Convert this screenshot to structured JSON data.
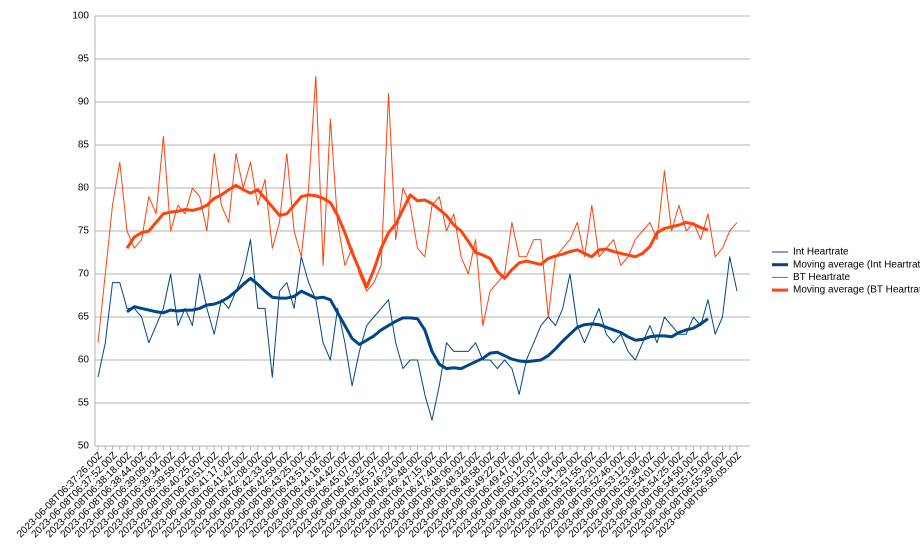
{
  "chart_data": {
    "type": "line",
    "categories": [
      "2023-06-08T06:37:26.00Z",
      null,
      "2023-06-08T06:37:52.00Z",
      null,
      "2023-06-08T06:38:18.00Z",
      null,
      "2023-06-08T06:38:44.00Z",
      null,
      "2023-06-08T06:39:09.00Z",
      null,
      "2023-06-08T06:39:34.00Z",
      null,
      "2023-06-08T06:39:59.00Z",
      null,
      "2023-06-08T06:40:25.00Z",
      null,
      "2023-06-08T06:40:51.00Z",
      null,
      "2023-06-08T06:41:17.00Z",
      null,
      "2023-06-08T06:41:42.00Z",
      null,
      "2023-06-08T06:42:08.00Z",
      null,
      "2023-06-08T06:42:33.00Z",
      null,
      "2023-06-08T06:42:59.00Z",
      null,
      "2023-06-08T06:43:25.00Z",
      null,
      "2023-06-08T06:43:51.00Z",
      null,
      "2023-06-08T06:44:16.00Z",
      null,
      "2023-06-08T06:44:42.00Z",
      null,
      "2023-06-08T06:45:07.00Z",
      null,
      "2023-06-08T06:45:32.00Z",
      null,
      "2023-06-08T06:45:57.00Z",
      null,
      "2023-06-08T06:46:23.00Z",
      null,
      "2023-06-08T06:46:48.00Z",
      null,
      "2023-06-08T06:47:15.00Z",
      null,
      "2023-06-08T06:47:40.00Z",
      null,
      "2023-06-08T06:48:06.00Z",
      null,
      "2023-06-08T06:48:32.00Z",
      null,
      "2023-06-08T06:48:58.00Z",
      null,
      "2023-06-08T06:49:22.00Z",
      null,
      "2023-06-08T06:49:47.00Z",
      null,
      "2023-06-08T06:50:12.00Z",
      null,
      "2023-06-08T06:50:37.00Z",
      null,
      "2023-06-08T06:51:04.00Z",
      null,
      "2023-06-08T06:51:29.00Z",
      null,
      "2023-06-08T06:51:55.00Z",
      null,
      "2023-06-08T06:52:20.00Z",
      null,
      "2023-06-08T06:52:46.00Z",
      null,
      "2023-06-08T06:53:12.00Z",
      null,
      "2023-06-08T06:53:38.00Z",
      null,
      "2023-06-08T06:54:01.00Z",
      null,
      "2023-06-08T06:54:25.00Z",
      null,
      "2023-06-08T06:54:50.00Z",
      null,
      "2023-06-08T06:55:15.00Z",
      null,
      "2023-06-08T06:55:39.00Z",
      null,
      "2023-06-08T06:56:05.00Z"
    ],
    "series": [
      {
        "name": "Int Heartrate",
        "color": "#004586",
        "width": 1,
        "values": [
          58,
          62,
          69,
          69,
          66,
          66,
          65,
          62,
          64,
          66,
          70,
          64,
          66,
          64,
          70,
          66,
          63,
          67,
          66,
          68,
          70,
          74,
          66,
          66,
          58,
          68,
          69,
          66,
          72,
          69,
          67,
          62,
          60,
          66,
          62,
          57,
          61,
          64,
          65,
          66,
          67,
          62,
          59,
          60,
          60,
          56,
          53,
          57,
          62,
          61,
          61,
          61,
          62,
          60,
          60,
          59,
          60,
          59,
          56,
          60,
          62,
          64,
          65,
          64,
          66,
          70,
          64,
          62,
          64,
          66,
          63,
          62,
          63,
          61,
          60,
          62,
          64,
          62,
          65,
          64,
          63,
          63,
          65,
          64,
          67,
          63,
          65,
          72,
          68
        ]
      },
      {
        "name": "Moving average (Int Heartrate)",
        "color": "#004586",
        "width": 3,
        "values": [
          null,
          null,
          null,
          null,
          65.6,
          66.2,
          66,
          65.8,
          65.6,
          65.5,
          65.8,
          65.7,
          65.8,
          65.8,
          66,
          66.4,
          66.5,
          66.8,
          67.3,
          68,
          68.8,
          69.5,
          68.8,
          68,
          67.3,
          67.2,
          67.2,
          67.4,
          68,
          67.6,
          67.2,
          67.3,
          67,
          65.5,
          64,
          62.5,
          61.8,
          62.3,
          62.8,
          63.5,
          64,
          64.5,
          64.9,
          64.9,
          64.8,
          63.5,
          61,
          59.5,
          59,
          59.1,
          59,
          59.4,
          59.8,
          60.2,
          60.8,
          60.9,
          60.5,
          60.1,
          59.9,
          59.8,
          59.9,
          60,
          60.5,
          61.3,
          62.2,
          63,
          63.8,
          64.1,
          64.2,
          64.1,
          63.8,
          63.5,
          63.2,
          62.7,
          62.3,
          62.4,
          62.7,
          62.8,
          62.8,
          62.7,
          63.2,
          63.5,
          63.7,
          64.2,
          64.8,
          null,
          null,
          null,
          null
        ]
      },
      {
        "name": "BT Heartrate",
        "color": "#ff420e",
        "width": 1,
        "values": [
          62,
          70,
          78,
          83,
          75,
          73,
          74,
          79,
          77,
          86,
          75,
          78,
          77,
          80,
          79,
          75,
          84,
          78,
          76,
          84,
          80,
          83,
          78,
          81,
          73,
          76,
          84,
          75,
          72,
          80,
          93,
          71,
          88,
          76,
          71,
          73,
          70,
          68,
          69,
          71,
          91,
          74,
          80,
          78,
          73,
          72,
          78,
          79,
          75,
          77,
          72,
          70,
          74,
          64,
          68,
          69,
          70,
          76,
          72,
          72,
          74,
          74,
          65,
          72,
          73,
          74,
          76,
          72,
          78,
          72,
          73,
          74,
          71,
          72,
          74,
          75,
          76,
          74,
          82,
          75,
          78,
          75,
          76,
          74,
          77,
          72,
          73,
          75,
          76
        ]
      },
      {
        "name": "Moving average (BT Heartrate)",
        "color": "#ff420e",
        "width": 3,
        "values": [
          null,
          null,
          null,
          null,
          73,
          74.3,
          74.8,
          75,
          76,
          77,
          77.2,
          77.3,
          77.5,
          77.4,
          77.6,
          78,
          78.8,
          79.2,
          79.8,
          80.3,
          79.8,
          79.4,
          79.8,
          78.8,
          77.8,
          76.8,
          77,
          78,
          79,
          79.2,
          79.1,
          78.8,
          78.3,
          76.8,
          74.8,
          72.5,
          70.5,
          68.5,
          70.5,
          73,
          74.8,
          75.8,
          77.5,
          79.2,
          78.5,
          78.6,
          78.2,
          77.5,
          76.8,
          75.7,
          75,
          73.8,
          72.5,
          72.2,
          71.8,
          70.3,
          69.5,
          70.5,
          71.3,
          71.5,
          71.3,
          71.1,
          71.8,
          72.1,
          72.3,
          72.6,
          72.8,
          72.4,
          72,
          72.8,
          72.9,
          72.6,
          72.4,
          72.2,
          72,
          72.4,
          73.2,
          74.8,
          75.3,
          75.5,
          75.7,
          76,
          75.8,
          75.4,
          75.1,
          null,
          null,
          null,
          null
        ]
      }
    ],
    "ylim": [
      50,
      100
    ],
    "yticks": [
      50,
      55,
      60,
      65,
      70,
      75,
      80,
      85,
      90,
      95,
      100
    ],
    "grid": true,
    "legend": "right"
  }
}
